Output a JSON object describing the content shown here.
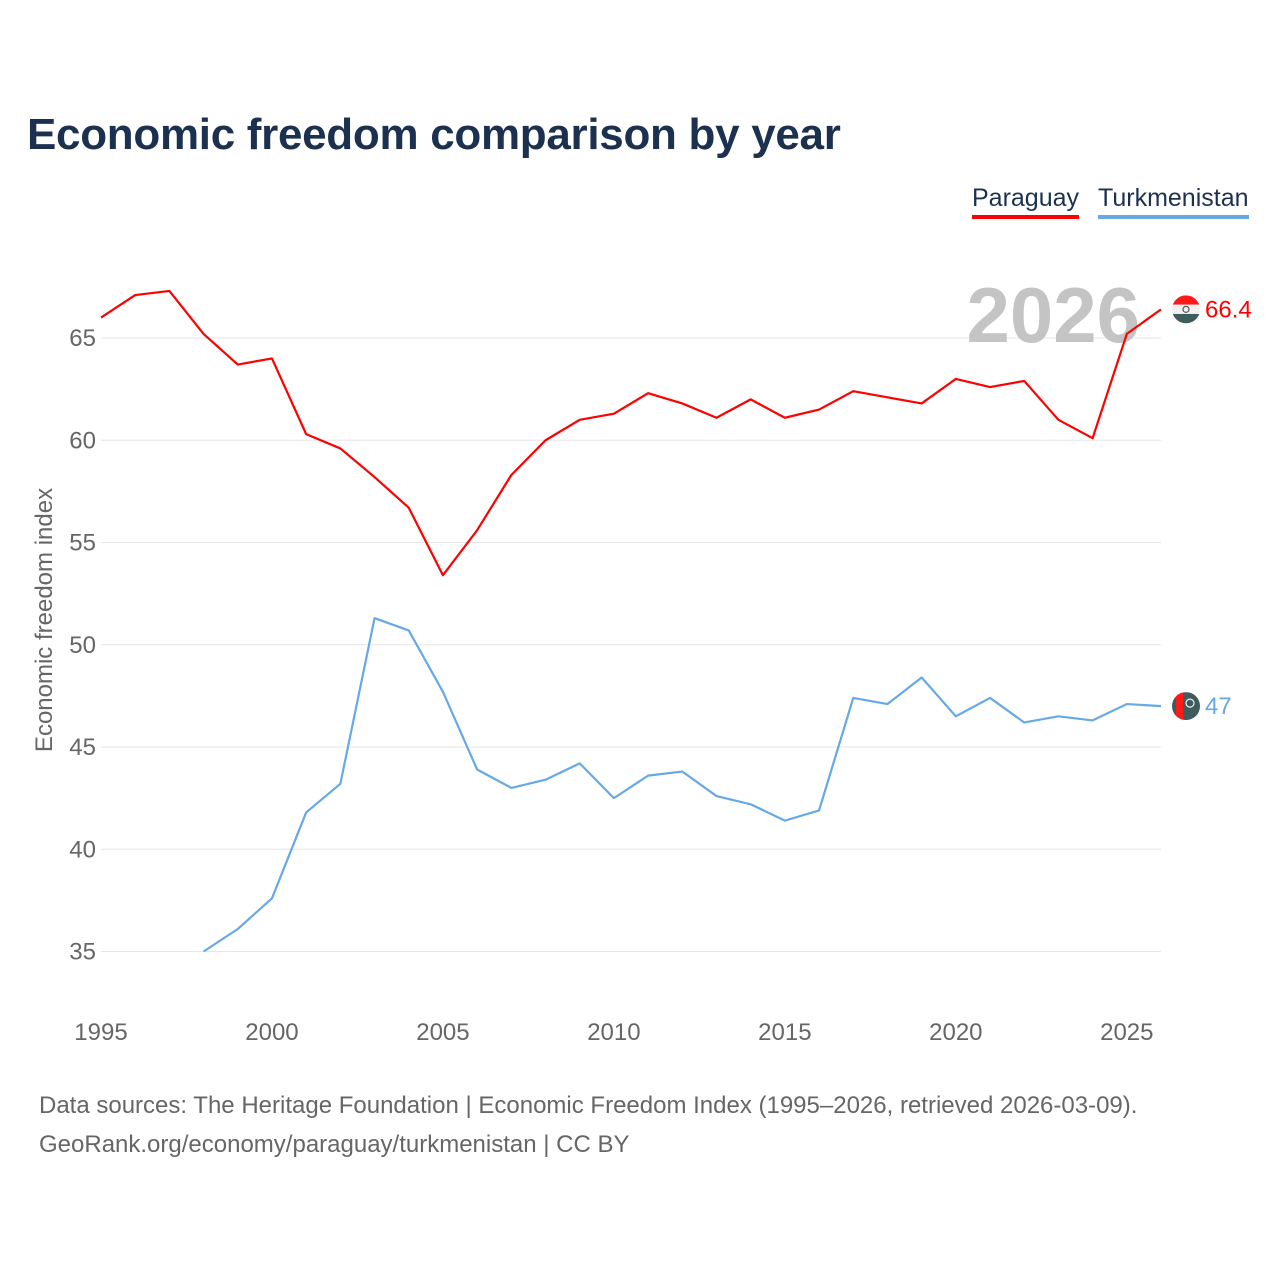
{
  "title": "Economic freedom comparison by year",
  "footer": {
    "line1": "Data sources: The Heritage Foundation | Economic Freedom Index (1995–2026, retrieved 2026-03-09).",
    "line2": "GeoRank.org/economy/paraguay/turkmenistan | CC BY"
  },
  "chart_data": {
    "type": "line",
    "title": "Economic freedom comparison by year",
    "xlabel": "",
    "ylabel": "Economic freedom index",
    "xlim": [
      1995,
      2026
    ],
    "ylim": [
      33,
      68.5
    ],
    "x_ticks": [
      "1995",
      "2000",
      "2005",
      "2010",
      "2015",
      "2020",
      "2025"
    ],
    "y_ticks": [
      "35",
      "40",
      "45",
      "50",
      "55",
      "60",
      "65"
    ],
    "year_watermark": "2026",
    "legend_placement": "top-right",
    "series": [
      {
        "name": "Paraguay",
        "color": "#ff0000",
        "end_label": "66.4",
        "flag_icon": "paraguay-flag-icon",
        "x": [
          1995,
          1996,
          1997,
          1998,
          1999,
          2000,
          2001,
          2002,
          2003,
          2004,
          2005,
          2006,
          2007,
          2008,
          2009,
          2010,
          2011,
          2012,
          2013,
          2014,
          2015,
          2016,
          2017,
          2018,
          2019,
          2020,
          2021,
          2022,
          2023,
          2024,
          2025,
          2026
        ],
        "values": [
          66.0,
          67.1,
          67.3,
          65.2,
          63.7,
          64.0,
          60.3,
          59.6,
          58.2,
          56.7,
          53.4,
          55.6,
          58.3,
          60.0,
          61.0,
          61.3,
          62.3,
          61.8,
          61.1,
          62.0,
          61.1,
          61.5,
          62.4,
          62.1,
          61.8,
          63.0,
          62.6,
          62.9,
          61.0,
          60.1,
          65.2,
          66.4
        ]
      },
      {
        "name": "Turkmenistan",
        "color": "#66a8e8",
        "end_label": "47",
        "flag_icon": "turkmenistan-flag-icon",
        "x": [
          1998,
          1999,
          2000,
          2001,
          2002,
          2003,
          2004,
          2005,
          2006,
          2007,
          2008,
          2009,
          2010,
          2011,
          2012,
          2013,
          2014,
          2015,
          2016,
          2017,
          2018,
          2019,
          2020,
          2021,
          2022,
          2023,
          2024,
          2025,
          2026
        ],
        "values": [
          35.0,
          36.1,
          37.6,
          41.8,
          43.2,
          51.3,
          50.7,
          47.7,
          43.9,
          43.0,
          43.4,
          44.2,
          42.5,
          43.6,
          43.8,
          42.6,
          42.2,
          41.4,
          41.9,
          47.4,
          47.1,
          48.4,
          46.5,
          47.4,
          46.2,
          46.5,
          46.3,
          47.1,
          47.0
        ]
      }
    ]
  }
}
